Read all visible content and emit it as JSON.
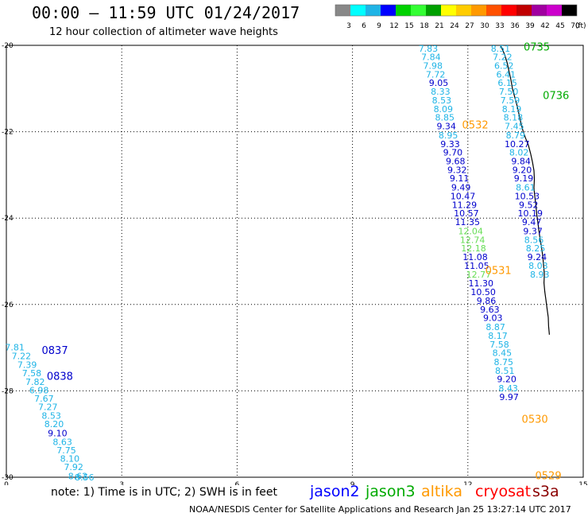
{
  "title": "00:00 – 11:59 UTC 01/24/2017",
  "subtitle": "12 hour collection of altimeter wave heights",
  "note": "note:  1) Time is in UTC;  2) SWH is in feet",
  "credit": "NOAA/NESDIS Center for Satellite Applications and Research    Jan 25 13:27:14 UTC 2017",
  "colorbar": {
    "unit": "(ft)",
    "ticks": [
      "3",
      "6",
      "9",
      "12",
      "15",
      "18",
      "21",
      "24",
      "27",
      "30",
      "33",
      "36",
      "39",
      "42",
      "45",
      "70"
    ],
    "colors": [
      "#888888",
      "#00ffff",
      "#1fb4e6",
      "#0000ff",
      "#00d200",
      "#33ff33",
      "#00a000",
      "#ffff00",
      "#ffcc00",
      "#ff9900",
      "#ff5000",
      "#ff0000",
      "#c00000",
      "#a000a0",
      "#cc00cc",
      "#000000"
    ]
  },
  "satellites": [
    {
      "name": "jason2",
      "color": "#0000ff"
    },
    {
      "name": "jason3",
      "color": "#00aa00"
    },
    {
      "name": "altika",
      "color": "#ff9900"
    },
    {
      "name": "cryosat",
      "color": "#ff0000"
    },
    {
      "name": "s3a",
      "color": "#8b0000"
    }
  ],
  "map": {
    "lon_range": [
      0,
      15
    ],
    "lat_range": [
      -30,
      -20
    ],
    "x_ticks": [
      "0",
      "3",
      "6",
      "9",
      "12",
      "15"
    ],
    "y_ticks": [
      "-30",
      "-28",
      "-26",
      "-24",
      "-22",
      "-20"
    ]
  },
  "chart_data": {
    "type": "scatter",
    "xlabel": "",
    "ylabel": "",
    "xlim": [
      0,
      15
    ],
    "ylim": [
      -30,
      -20
    ],
    "grid": true,
    "series": [
      {
        "satellite": "jason2",
        "passes": [
          {
            "label": "0837",
            "lon": 0.92,
            "lat": -27.05,
            "color": "#0000cc"
          },
          {
            "label": "0838",
            "lon": 1.05,
            "lat": -27.65,
            "color": "#0000cc"
          }
        ],
        "points": [
          {
            "lon": 0.22,
            "lat": -26.99,
            "value": "7.81",
            "color": "#1fb4e6"
          },
          {
            "lon": 0.39,
            "lat": -27.19,
            "value": "7.22",
            "color": "#1fb4e6"
          },
          {
            "lon": 0.54,
            "lat": -27.39,
            "value": "7.39",
            "color": "#1fb4e6"
          },
          {
            "lon": 0.66,
            "lat": -27.59,
            "value": "7.58",
            "color": "#1fb4e6"
          },
          {
            "lon": 0.75,
            "lat": -27.79,
            "value": "7.82",
            "color": "#1fb4e6"
          },
          {
            "lon": 0.85,
            "lat": -27.98,
            "value": "6.98",
            "color": "#1fb4e6"
          },
          {
            "lon": 0.98,
            "lat": -28.18,
            "value": "7.67",
            "color": "#1fb4e6"
          },
          {
            "lon": 1.08,
            "lat": -28.37,
            "value": "7.27",
            "color": "#1fb4e6"
          },
          {
            "lon": 1.17,
            "lat": -28.57,
            "value": "8.53",
            "color": "#1fb4e6"
          },
          {
            "lon": 1.24,
            "lat": -28.77,
            "value": "8.20",
            "color": "#1fb4e6"
          },
          {
            "lon": 1.33,
            "lat": -28.98,
            "value": "9.10",
            "color": "#0000cc"
          },
          {
            "lon": 1.46,
            "lat": -29.18,
            "value": "8.63",
            "color": "#1fb4e6"
          },
          {
            "lon": 1.56,
            "lat": -29.37,
            "value": "7.75",
            "color": "#1fb4e6"
          },
          {
            "lon": 1.65,
            "lat": -29.57,
            "value": "8.10",
            "color": "#1fb4e6"
          },
          {
            "lon": 1.75,
            "lat": -29.76,
            "value": "7.92",
            "color": "#1fb4e6"
          },
          {
            "lon": 1.86,
            "lat": -29.97,
            "value": "8.62",
            "color": "#1fb4e6"
          },
          {
            "lon": 2.03,
            "lat": -30.0,
            "value": "8.56",
            "color": "#1fb4e6"
          }
        ]
      },
      {
        "satellite": "altika",
        "passes": [
          {
            "label": "0532",
            "lon": 11.85,
            "lat": -21.83,
            "color": "#ff9900"
          },
          {
            "label": "0531",
            "lon": 12.45,
            "lat": -25.2,
            "color": "#ff9900"
          },
          {
            "label": "0530",
            "lon": 13.4,
            "lat": -28.65,
            "color": "#ff9900"
          },
          {
            "label": "0529",
            "lon": 13.75,
            "lat": -29.95,
            "color": "#ff9900"
          }
        ],
        "points": [
          {
            "lon": 10.97,
            "lat": -20.07,
            "value": "7.83",
            "color": "#1fb4e6"
          },
          {
            "lon": 11.04,
            "lat": -20.27,
            "value": "7.84",
            "color": "#1fb4e6"
          },
          {
            "lon": 11.09,
            "lat": -20.47,
            "value": "7.98",
            "color": "#1fb4e6"
          },
          {
            "lon": 11.16,
            "lat": -20.67,
            "value": "7.72",
            "color": "#1fb4e6"
          },
          {
            "lon": 11.24,
            "lat": -20.87,
            "value": "9.05",
            "color": "#0000cc"
          },
          {
            "lon": 11.29,
            "lat": -21.07,
            "value": "8.33",
            "color": "#1fb4e6"
          },
          {
            "lon": 11.32,
            "lat": -21.27,
            "value": "8.53",
            "color": "#1fb4e6"
          },
          {
            "lon": 11.36,
            "lat": -21.47,
            "value": "8.09",
            "color": "#1fb4e6"
          },
          {
            "lon": 11.4,
            "lat": -21.67,
            "value": "8.85",
            "color": "#1fb4e6"
          },
          {
            "lon": 11.44,
            "lat": -21.87,
            "value": "9.34",
            "color": "#0000cc"
          },
          {
            "lon": 11.49,
            "lat": -22.08,
            "value": "8.95",
            "color": "#1fb4e6"
          },
          {
            "lon": 11.54,
            "lat": -22.28,
            "value": "9.33",
            "color": "#0000cc"
          },
          {
            "lon": 11.61,
            "lat": -22.48,
            "value": "9.70",
            "color": "#0000cc"
          },
          {
            "lon": 11.68,
            "lat": -22.68,
            "value": "9.68",
            "color": "#0000cc"
          },
          {
            "lon": 11.72,
            "lat": -22.88,
            "value": "9.32",
            "color": "#0000cc"
          },
          {
            "lon": 11.78,
            "lat": -23.08,
            "value": "9.11",
            "color": "#0000cc"
          },
          {
            "lon": 11.82,
            "lat": -23.29,
            "value": "9.49",
            "color": "#0000cc"
          },
          {
            "lon": 11.87,
            "lat": -23.49,
            "value": "10.47",
            "color": "#0000cc"
          },
          {
            "lon": 11.91,
            "lat": -23.69,
            "value": "11.29",
            "color": "#0000cc"
          },
          {
            "lon": 11.96,
            "lat": -23.89,
            "value": "10.57",
            "color": "#0000cc"
          },
          {
            "lon": 11.99,
            "lat": -24.09,
            "value": "11.35",
            "color": "#0000cc"
          },
          {
            "lon": 12.07,
            "lat": -24.3,
            "value": "12.04",
            "color": "#66dd55"
          },
          {
            "lon": 12.12,
            "lat": -24.5,
            "value": "12.74",
            "color": "#66dd55"
          },
          {
            "lon": 12.15,
            "lat": -24.7,
            "value": "12.18",
            "color": "#66dd55"
          },
          {
            "lon": 12.19,
            "lat": -24.9,
            "value": "11.08",
            "color": "#0000cc"
          },
          {
            "lon": 12.23,
            "lat": -25.1,
            "value": "11.05",
            "color": "#0000cc"
          },
          {
            "lon": 12.28,
            "lat": -25.3,
            "value": "12.77",
            "color": "#66dd55"
          },
          {
            "lon": 12.34,
            "lat": -25.51,
            "value": "11.30",
            "color": "#0000cc"
          },
          {
            "lon": 12.4,
            "lat": -25.71,
            "value": "10.50",
            "color": "#0000cc"
          },
          {
            "lon": 12.48,
            "lat": -25.91,
            "value": "9.86",
            "color": "#0000cc"
          },
          {
            "lon": 12.57,
            "lat": -26.11,
            "value": "9.63",
            "color": "#0000cc"
          },
          {
            "lon": 12.65,
            "lat": -26.31,
            "value": "9.03",
            "color": "#0000cc"
          },
          {
            "lon": 12.72,
            "lat": -26.52,
            "value": "8.87",
            "color": "#1fb4e6"
          },
          {
            "lon": 12.78,
            "lat": -26.72,
            "value": "8.17",
            "color": "#1fb4e6"
          },
          {
            "lon": 12.82,
            "lat": -26.92,
            "value": "7.58",
            "color": "#1fb4e6"
          },
          {
            "lon": 12.89,
            "lat": -27.12,
            "value": "8.45",
            "color": "#1fb4e6"
          },
          {
            "lon": 12.93,
            "lat": -27.33,
            "value": "8.75",
            "color": "#1fb4e6"
          },
          {
            "lon": 12.96,
            "lat": -27.53,
            "value": "8.51",
            "color": "#1fb4e6"
          },
          {
            "lon": 13.01,
            "lat": -27.73,
            "value": "9.20",
            "color": "#0000cc"
          },
          {
            "lon": 13.05,
            "lat": -27.94,
            "value": "8.43",
            "color": "#1fb4e6"
          },
          {
            "lon": 13.07,
            "lat": -28.14,
            "value": "9.97",
            "color": "#0000cc"
          }
        ]
      },
      {
        "satellite": "jason3",
        "passes": [
          {
            "label": "0735",
            "lon": 13.45,
            "lat": -20.03,
            "color": "#00aa00"
          },
          {
            "label": "0736",
            "lon": 13.95,
            "lat": -21.15,
            "color": "#00aa00"
          }
        ],
        "points": [
          {
            "lon": 12.85,
            "lat": -20.07,
            "value": "8.51",
            "color": "#1fb4e6"
          },
          {
            "lon": 12.9,
            "lat": -20.27,
            "value": "7.22",
            "color": "#1fb4e6"
          },
          {
            "lon": 12.94,
            "lat": -20.47,
            "value": "6.52",
            "color": "#1fb4e6"
          },
          {
            "lon": 12.99,
            "lat": -20.67,
            "value": "6.41",
            "color": "#1fb4e6"
          },
          {
            "lon": 13.03,
            "lat": -20.87,
            "value": "6.15",
            "color": "#1fb4e6"
          },
          {
            "lon": 13.06,
            "lat": -21.07,
            "value": "7.50",
            "color": "#1fb4e6"
          },
          {
            "lon": 13.1,
            "lat": -21.27,
            "value": "7.59",
            "color": "#1fb4e6"
          },
          {
            "lon": 13.14,
            "lat": -21.47,
            "value": "8.19",
            "color": "#1fb4e6"
          },
          {
            "lon": 13.18,
            "lat": -21.67,
            "value": "8.18",
            "color": "#1fb4e6"
          },
          {
            "lon": 13.21,
            "lat": -21.87,
            "value": "7.45",
            "color": "#1fb4e6"
          },
          {
            "lon": 13.24,
            "lat": -22.08,
            "value": "8.79",
            "color": "#1fb4e6"
          },
          {
            "lon": 13.28,
            "lat": -22.28,
            "value": "10.27",
            "color": "#0000cc"
          },
          {
            "lon": 13.33,
            "lat": -22.48,
            "value": "8.02",
            "color": "#1fb4e6"
          },
          {
            "lon": 13.38,
            "lat": -22.68,
            "value": "9.84",
            "color": "#0000cc"
          },
          {
            "lon": 13.41,
            "lat": -22.88,
            "value": "9.20",
            "color": "#0000cc"
          },
          {
            "lon": 13.45,
            "lat": -23.08,
            "value": "9.19",
            "color": "#0000cc"
          },
          {
            "lon": 13.5,
            "lat": -23.29,
            "value": "8.61",
            "color": "#1fb4e6"
          },
          {
            "lon": 13.54,
            "lat": -23.49,
            "value": "10.53",
            "color": "#0000cc"
          },
          {
            "lon": 13.58,
            "lat": -23.69,
            "value": "9.52",
            "color": "#0000cc"
          },
          {
            "lon": 13.62,
            "lat": -23.89,
            "value": "10.19",
            "color": "#0000cc"
          },
          {
            "lon": 13.66,
            "lat": -24.09,
            "value": "9.47",
            "color": "#0000cc"
          },
          {
            "lon": 13.69,
            "lat": -24.3,
            "value": "9.37",
            "color": "#0000cc"
          },
          {
            "lon": 13.72,
            "lat": -24.5,
            "value": "8.56",
            "color": "#1fb4e6"
          },
          {
            "lon": 13.76,
            "lat": -24.7,
            "value": "8.25",
            "color": "#1fb4e6"
          },
          {
            "lon": 13.8,
            "lat": -24.9,
            "value": "9.24",
            "color": "#0000cc"
          },
          {
            "lon": 13.83,
            "lat": -25.1,
            "value": "8.03",
            "color": "#1fb4e6"
          },
          {
            "lon": 13.87,
            "lat": -25.3,
            "value": "8.93",
            "color": "#1fb4e6"
          }
        ]
      }
    ],
    "coastline": [
      [
        12.85,
        -20.0
      ],
      [
        12.95,
        -20.2
      ],
      [
        13.02,
        -20.4
      ],
      [
        13.07,
        -20.6
      ],
      [
        13.12,
        -20.8
      ],
      [
        13.16,
        -21.0
      ],
      [
        13.22,
        -21.2
      ],
      [
        13.28,
        -21.4
      ],
      [
        13.33,
        -21.6
      ],
      [
        13.38,
        -21.8
      ],
      [
        13.44,
        -22.0
      ],
      [
        13.5,
        -22.15
      ],
      [
        13.57,
        -22.3
      ],
      [
        13.63,
        -22.5
      ],
      [
        13.68,
        -22.7
      ],
      [
        13.72,
        -22.9
      ],
      [
        13.73,
        -23.1
      ],
      [
        13.72,
        -23.3
      ],
      [
        13.74,
        -23.5
      ],
      [
        13.77,
        -23.7
      ],
      [
        13.79,
        -23.9
      ],
      [
        13.82,
        -24.1
      ],
      [
        13.85,
        -24.3
      ],
      [
        13.88,
        -24.5
      ],
      [
        13.92,
        -24.7
      ],
      [
        13.95,
        -24.9
      ],
      [
        13.97,
        -25.1
      ],
      [
        13.99,
        -25.3
      ],
      [
        13.98,
        -25.5
      ],
      [
        14.0,
        -25.7
      ],
      [
        14.03,
        -25.9
      ],
      [
        14.06,
        -26.1
      ],
      [
        14.09,
        -26.3
      ],
      [
        14.1,
        -26.5
      ],
      [
        14.12,
        -26.7
      ]
    ]
  }
}
